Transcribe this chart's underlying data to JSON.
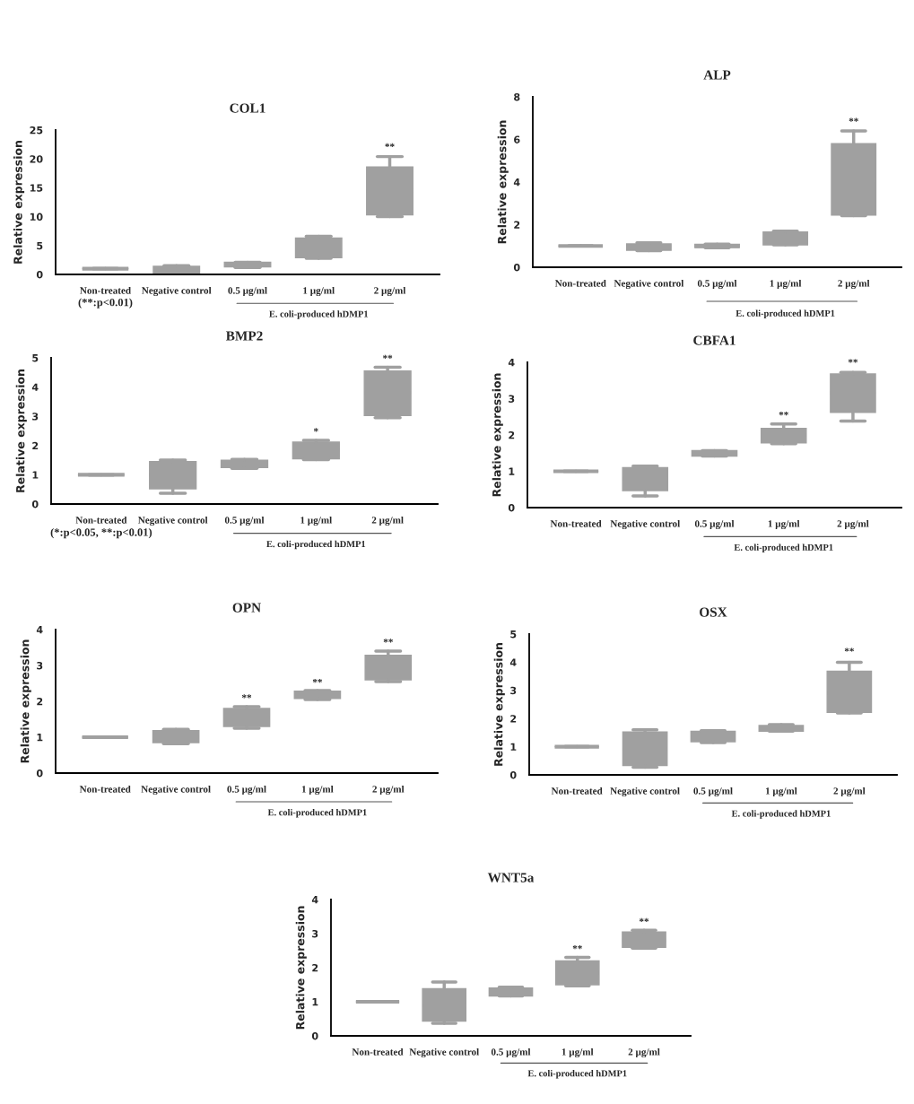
{
  "chart_data": [
    {
      "type": "box",
      "title": "COL1",
      "ylabel": "Relative expression",
      "categories": [
        "Non-treated",
        "Negative control",
        "0.5 µg/ml",
        "1 µg/ml",
        "2 µg/ml"
      ],
      "ylim": [
        0,
        25
      ],
      "yticks": [
        0,
        5,
        10,
        15,
        20,
        25
      ],
      "series": [
        {
          "color": "#a0a0a0",
          "boxes": [
            {
              "low": 1,
              "q1": 1,
              "median": 1,
              "q3": 1,
              "high": 1
            },
            {
              "low": 0.1,
              "q1": 0.2,
              "median": 0.8,
              "q3": 1.4,
              "high": 1.5
            },
            {
              "low": 1.2,
              "q1": 1.3,
              "median": 1.7,
              "q3": 2.1,
              "high": 2.1
            },
            {
              "low": 2.8,
              "q1": 2.9,
              "median": 4.6,
              "q3": 6.3,
              "high": 6.6
            },
            {
              "low": 10.0,
              "q1": 10.3,
              "median": 14.5,
              "q3": 18.6,
              "high": 20.4
            }
          ]
        }
      ],
      "annotations": [
        {
          "text": "**",
          "x": "2 µg/ml",
          "y": 21.2
        },
        "(**:p<0.01)",
        "E. coli-produced hDMP1"
      ]
    },
    {
      "type": "box",
      "title": "ALP",
      "ylabel": "Relative expression",
      "categories": [
        "Non-treated",
        "Negative control",
        "0.5 µg/ml",
        "1 µg/ml",
        "2 µg/ml"
      ],
      "ylim": [
        0,
        8
      ],
      "yticks": [
        0,
        2,
        4,
        6,
        8
      ],
      "series": [
        {
          "color": "#a0a0a0",
          "boxes": [
            {
              "low": 1,
              "q1": 1,
              "median": 1,
              "q3": 1,
              "high": 1
            },
            {
              "low": 0.78,
              "q1": 0.8,
              "median": 0.95,
              "q3": 1.1,
              "high": 1.15
            },
            {
              "low": 0.92,
              "q1": 0.92,
              "median": 1.0,
              "q3": 1.08,
              "high": 1.08
            },
            {
              "low": 1.05,
              "q1": 1.05,
              "median": 1.35,
              "q3": 1.65,
              "high": 1.7
            },
            {
              "low": 2.42,
              "q1": 2.45,
              "median": 4.1,
              "q3": 5.8,
              "high": 6.4
            }
          ]
        }
      ],
      "annotations": [
        {
          "text": "**",
          "x": "2 µg/ml",
          "y": 6.6
        },
        "E. coli-produced hDMP1"
      ]
    },
    {
      "type": "box",
      "title": "BMP2",
      "ylabel": "Relative expression",
      "categories": [
        "Non-treated",
        "Negative control",
        "0.5 µg/ml",
        "1 µg/ml",
        "2 µg/ml"
      ],
      "ylim": [
        0,
        5
      ],
      "yticks": [
        0,
        1,
        2,
        3,
        4,
        5
      ],
      "series": [
        {
          "color": "#a0a0a0",
          "boxes": [
            {
              "low": 1,
              "q1": 1,
              "median": 1,
              "q3": 1,
              "high": 1
            },
            {
              "low": 0.37,
              "q1": 0.52,
              "median": 1.0,
              "q3": 1.45,
              "high": 1.5
            },
            {
              "low": 1.22,
              "q1": 1.25,
              "median": 1.38,
              "q3": 1.5,
              "high": 1.53
            },
            {
              "low": 1.52,
              "q1": 1.55,
              "median": 1.85,
              "q3": 2.12,
              "high": 2.18
            },
            {
              "low": 2.95,
              "q1": 3.03,
              "median": 3.8,
              "q3": 4.55,
              "high": 4.68
            }
          ]
        }
      ],
      "annotations": [
        {
          "text": "*",
          "x": "1 µg/ml",
          "y": 2.3
        },
        {
          "text": "**",
          "x": "2 µg/ml",
          "y": 4.8
        },
        "(*:p<0.05, **:p<0.01)",
        "E. coli-produced hDMP1"
      ]
    },
    {
      "type": "box",
      "title": "CBFA1",
      "ylabel": "Relative expression",
      "categories": [
        "Non-treated",
        "Negative control",
        "0.5 µg/ml",
        "1 µg/ml",
        "2 µg/ml"
      ],
      "ylim": [
        0,
        4
      ],
      "yticks": [
        0,
        1,
        2,
        3,
        4
      ],
      "series": [
        {
          "color": "#a0a0a0",
          "boxes": [
            {
              "low": 1,
              "q1": 1,
              "median": 1,
              "q3": 1,
              "high": 1
            },
            {
              "low": 0.32,
              "q1": 0.47,
              "median": 0.8,
              "q3": 1.1,
              "high": 1.14
            },
            {
              "low": 1.42,
              "q1": 1.42,
              "median": 1.5,
              "q3": 1.57,
              "high": 1.57
            },
            {
              "low": 1.76,
              "q1": 1.78,
              "median": 2.0,
              "q3": 2.18,
              "high": 2.3
            },
            {
              "low": 2.38,
              "q1": 2.62,
              "median": 3.15,
              "q3": 3.68,
              "high": 3.72
            }
          ]
        }
      ],
      "annotations": [
        {
          "text": "**",
          "x": "1 µg/ml",
          "y": 2.4
        },
        {
          "text": "**",
          "x": "2 µg/ml",
          "y": 3.85
        },
        "E. coli-produced hDMP1"
      ]
    },
    {
      "type": "box",
      "title": "OPN",
      "ylabel": "Relative expression",
      "categories": [
        "Non-treated",
        "Negative control",
        "0.5 µg/ml",
        "1 µg/ml",
        "2 µg/ml"
      ],
      "ylim": [
        0,
        4
      ],
      "yticks": [
        0,
        1,
        2,
        3,
        4
      ],
      "series": [
        {
          "color": "#a0a0a0",
          "boxes": [
            {
              "low": 1,
              "q1": 1,
              "median": 1,
              "q3": 1,
              "high": 1
            },
            {
              "low": 0.82,
              "q1": 0.85,
              "median": 1.0,
              "q3": 1.18,
              "high": 1.22
            },
            {
              "low": 1.25,
              "q1": 1.3,
              "median": 1.55,
              "q3": 1.8,
              "high": 1.85
            },
            {
              "low": 2.05,
              "q1": 2.08,
              "median": 2.18,
              "q3": 2.28,
              "high": 2.3
            },
            {
              "low": 2.55,
              "q1": 2.6,
              "median": 2.95,
              "q3": 3.28,
              "high": 3.4
            }
          ]
        }
      ],
      "annotations": [
        {
          "text": "**",
          "x": "0.5 µg/ml",
          "y": 1.95
        },
        {
          "text": "**",
          "x": "1 µg/ml",
          "y": 2.38
        },
        {
          "text": "**",
          "x": "2 µg/ml",
          "y": 3.5
        },
        "E. coli-produced hDMP1"
      ]
    },
    {
      "type": "box",
      "title": "OSX",
      "ylabel": "Relative expression",
      "categories": [
        "Non-treated",
        "Negative control",
        "0.5 µg/ml",
        "1 µg/ml",
        "2 µg/ml"
      ],
      "ylim": [
        0,
        5
      ],
      "yticks": [
        0,
        1,
        2,
        3,
        4,
        5
      ],
      "series": [
        {
          "color": "#a0a0a0",
          "boxes": [
            {
              "low": 1,
              "q1": 1,
              "median": 1,
              "q3": 1,
              "high": 1
            },
            {
              "low": 0.27,
              "q1": 0.33,
              "median": 0.9,
              "q3": 1.52,
              "high": 1.6
            },
            {
              "low": 1.15,
              "q1": 1.18,
              "median": 1.35,
              "q3": 1.55,
              "high": 1.57
            },
            {
              "low": 1.55,
              "q1": 1.55,
              "median": 1.65,
              "q3": 1.75,
              "high": 1.78
            },
            {
              "low": 2.2,
              "q1": 2.22,
              "median": 2.9,
              "q3": 3.68,
              "high": 4.0
            }
          ]
        }
      ],
      "annotations": [
        {
          "text": "**",
          "x": "2 µg/ml",
          "y": 4.2
        },
        "E. coli-produced hDMP1"
      ]
    },
    {
      "type": "box",
      "title": "WNT5a",
      "ylabel": "Relative expression",
      "categories": [
        "Non-treated",
        "Negative control",
        "0.5 µg/ml",
        "1 µg/ml",
        "2 µg/ml"
      ],
      "ylim": [
        0,
        4
      ],
      "yticks": [
        0,
        1,
        2,
        3,
        4
      ],
      "series": [
        {
          "color": "#a0a0a0",
          "boxes": [
            {
              "low": 1,
              "q1": 1,
              "median": 1,
              "q3": 1,
              "high": 1
            },
            {
              "low": 0.37,
              "q1": 0.43,
              "median": 0.9,
              "q3": 1.38,
              "high": 1.58
            },
            {
              "low": 1.17,
              "q1": 1.17,
              "median": 1.28,
              "q3": 1.4,
              "high": 1.43
            },
            {
              "low": 1.47,
              "q1": 1.5,
              "median": 1.85,
              "q3": 2.2,
              "high": 2.3
            },
            {
              "low": 2.57,
              "q1": 2.6,
              "median": 2.8,
              "q3": 3.05,
              "high": 3.1
            }
          ]
        }
      ],
      "annotations": [
        {
          "text": "**",
          "x": "1 µg/ml",
          "y": 2.4
        },
        {
          "text": "**",
          "x": "2 µg/ml",
          "y": 3.2
        },
        "E. coli-produced hDMP1"
      ]
    }
  ]
}
